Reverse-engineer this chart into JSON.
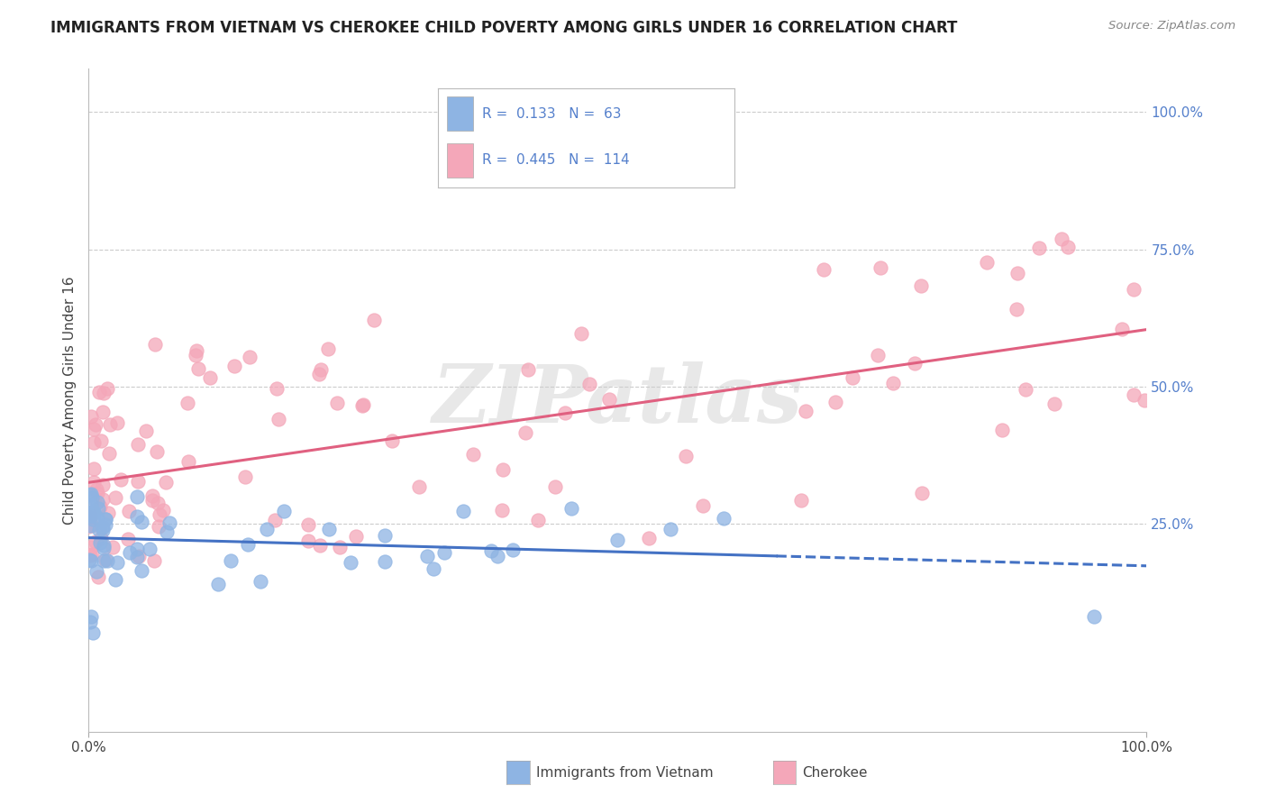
{
  "title": "IMMIGRANTS FROM VIETNAM VS CHEROKEE CHILD POVERTY AMONG GIRLS UNDER 16 CORRELATION CHART",
  "source": "Source: ZipAtlas.com",
  "ylabel": "Child Poverty Among Girls Under 16",
  "series1_name": "Immigrants from Vietnam",
  "series1_color": "#8eb4e3",
  "series2_name": "Cherokee",
  "series2_color": "#f4a7b9",
  "series1_line_color": "#4472c4",
  "series2_line_color": "#e06080",
  "watermark": "ZIPatlas",
  "background_color": "#ffffff",
  "grid_color": "#cccccc",
  "title_fontsize": 12,
  "ytick_color": "#5580cc",
  "legend_label1": "R =  0.133   N =  63",
  "legend_label2": "R =  0.445   N =  114",
  "xlim": [
    0.0,
    1.0
  ],
  "ylim": [
    -0.13,
    1.08
  ],
  "yticks": [
    0.0,
    0.25,
    0.5,
    0.75,
    1.0
  ],
  "ytick_labels": [
    "",
    "25.0%",
    "50.0%",
    "75.0%",
    "100.0%"
  ],
  "xtick_labels": [
    "0.0%",
    "100.0%"
  ],
  "seed": 123
}
